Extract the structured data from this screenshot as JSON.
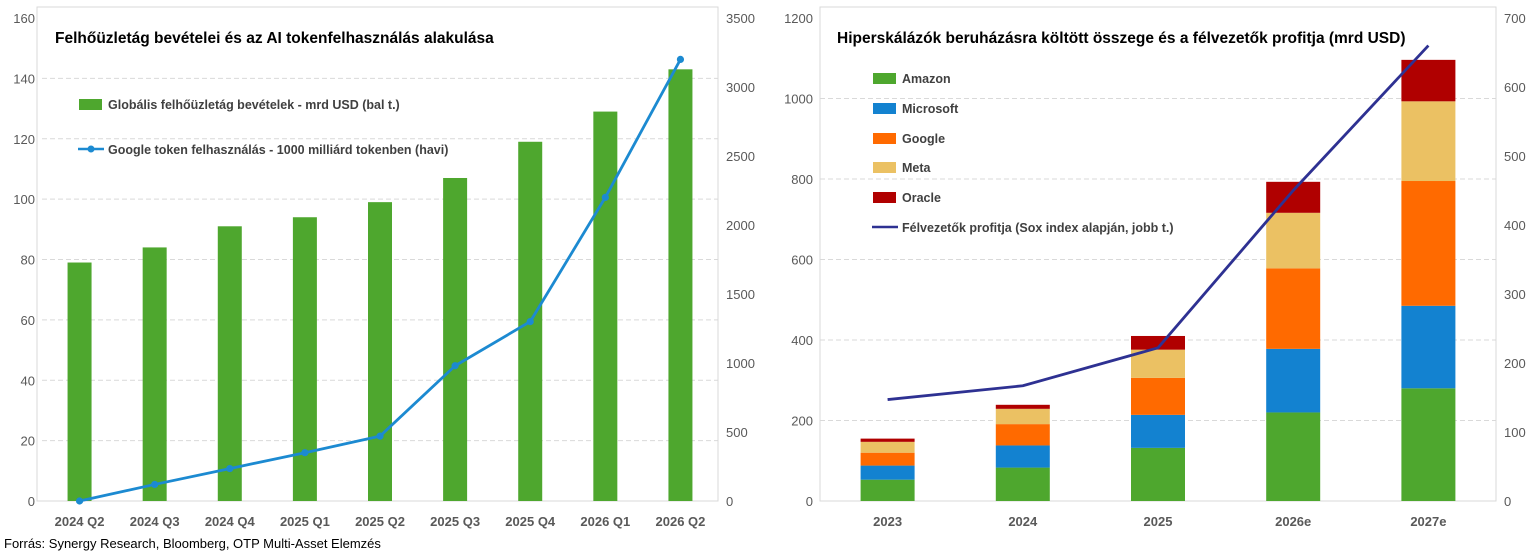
{
  "source": "Forrás: Synergy Research, Bloomberg, OTP Multi-Asset Elemzés",
  "chart_data": [
    {
      "type": "bar",
      "title": "Felhőüzletág bevételei és az AI tokenfelhasználás alakulása",
      "categories": [
        "2024 Q2",
        "2024 Q3",
        "2024 Q4",
        "2025 Q1",
        "2025 Q2",
        "2025 Q3",
        "2025 Q4",
        "2026 Q1",
        "2026 Q2"
      ],
      "series": [
        {
          "name": "Globális felhőüzletág bevételek - mrd USD (bal t.)",
          "type": "bar",
          "axis": "left",
          "color": "#4EA72E",
          "values": [
            79,
            84,
            91,
            94,
            99,
            107,
            119,
            129,
            143
          ]
        },
        {
          "name": "Google token felhasználás - 1000 milliárd tokenben (havi)",
          "type": "line",
          "axis": "right",
          "color": "#1C8AD1",
          "markers": true,
          "values": [
            0,
            120,
            235,
            350,
            470,
            980,
            1300,
            2200,
            3200
          ]
        }
      ],
      "ylim_left": [
        0,
        160
      ],
      "yticks_left": [
        "0",
        "20",
        "40",
        "60",
        "80",
        "100",
        "120",
        "140",
        "160"
      ],
      "ylim_right": [
        0,
        3500
      ],
      "yticks_right": [
        "0",
        "500",
        "1000",
        "1500",
        "2000",
        "2500",
        "3000",
        "3500"
      ],
      "grid": true,
      "legend": "top-left"
    },
    {
      "type": "bar",
      "stacked": true,
      "title": "Hiperskálázók beruházásra költött összege és a félvezetők profitja (mrd USD)",
      "categories": [
        "2023",
        "2024",
        "2025",
        "2026e",
        "2027e"
      ],
      "series": [
        {
          "name": "Amazon",
          "type": "bar",
          "axis": "left",
          "color": "#4EA72E",
          "values": [
            53,
            83,
            132,
            220,
            280
          ]
        },
        {
          "name": "Microsoft",
          "type": "bar",
          "axis": "left",
          "color": "#1382D0",
          "values": [
            35,
            55,
            82,
            158,
            205
          ]
        },
        {
          "name": "Google",
          "type": "bar",
          "axis": "left",
          "color": "#FF6A00",
          "values": [
            32,
            53,
            92,
            200,
            310
          ]
        },
        {
          "name": "Meta",
          "type": "bar",
          "axis": "left",
          "color": "#EBC163",
          "values": [
            27,
            38,
            70,
            138,
            198
          ]
        },
        {
          "name": "Oracle",
          "type": "bar",
          "axis": "left",
          "color": "#B00000",
          "values": [
            8,
            10,
            34,
            77,
            103
          ]
        },
        {
          "name": "Félvezetők profitja (Sox index alapján, jobb t.)",
          "type": "line",
          "axis": "right",
          "color": "#2E3192",
          "values": [
            147,
            167,
            222,
            450,
            660
          ]
        }
      ],
      "ylim_left": [
        0,
        1200
      ],
      "yticks_left": [
        "0",
        "200",
        "400",
        "600",
        "800",
        "1000",
        "1200"
      ],
      "ylim_right": [
        0,
        700
      ],
      "yticks_right": [
        "0",
        "100",
        "200",
        "300",
        "400",
        "500",
        "600",
        "700"
      ],
      "grid": true,
      "legend": "top-left"
    }
  ]
}
